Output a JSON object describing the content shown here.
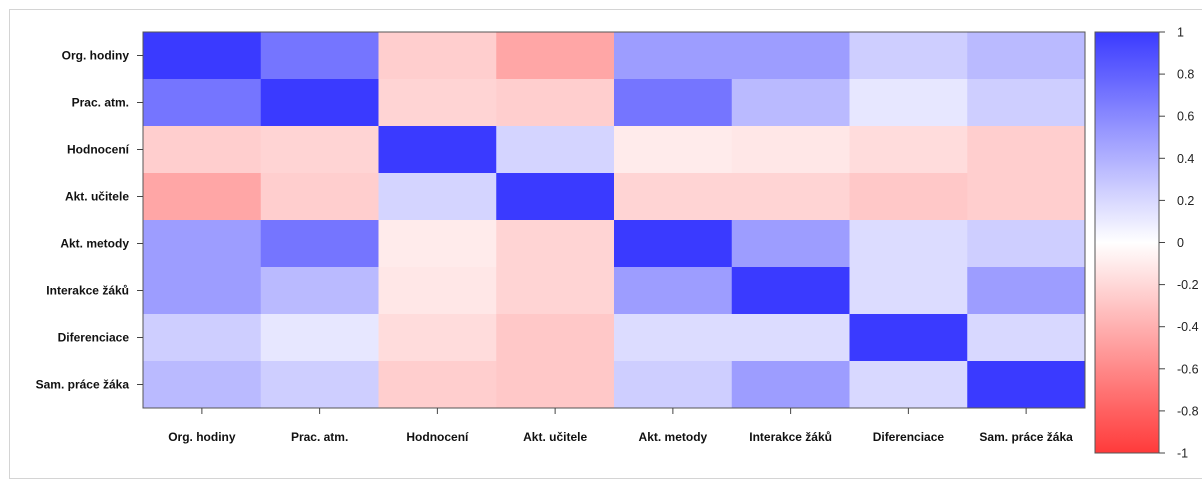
{
  "chart_data": {
    "type": "heatmap",
    "rows": [
      "Org. hodiny",
      "Prac. atm.",
      "Hodnocení",
      "Akt. učitele",
      "Akt. metody",
      "Interakce žáků",
      "Diferenciace",
      "Sam. práce žáka"
    ],
    "columns": [
      "Org. hodiny",
      "Prac. atm.",
      "Hodnocení",
      "Akt. učitele",
      "Akt. metody",
      "Interakce žáků",
      "Diferenciace",
      "Sam. práce žáka"
    ],
    "values": [
      [
        1.0,
        0.7,
        -0.25,
        -0.45,
        0.5,
        0.5,
        0.25,
        0.35
      ],
      [
        0.7,
        1.0,
        -0.22,
        -0.25,
        0.7,
        0.35,
        0.12,
        0.25
      ],
      [
        -0.25,
        -0.22,
        1.0,
        0.22,
        -0.1,
        -0.12,
        -0.18,
        -0.25
      ],
      [
        -0.45,
        -0.25,
        0.22,
        1.0,
        -0.22,
        -0.22,
        -0.28,
        -0.25
      ],
      [
        0.5,
        0.7,
        -0.1,
        -0.22,
        1.0,
        0.5,
        0.18,
        0.25
      ],
      [
        0.5,
        0.35,
        -0.12,
        -0.22,
        0.5,
        1.0,
        0.18,
        0.5
      ],
      [
        0.25,
        0.12,
        -0.18,
        -0.28,
        0.18,
        0.18,
        1.0,
        0.2
      ],
      [
        0.35,
        0.25,
        -0.25,
        -0.28,
        0.25,
        0.5,
        0.2,
        1.0
      ]
    ],
    "colorbar": {
      "min": -1,
      "max": 1,
      "ticks": [
        "1",
        "0.8",
        "0.6",
        "0.4",
        "0.2",
        "0",
        "-0.2",
        "-0.4",
        "-0.6",
        "-0.8",
        "-1"
      ],
      "tick_values": [
        1,
        0.8,
        0.6,
        0.4,
        0.2,
        0,
        -0.2,
        -0.4,
        -0.6,
        -0.8,
        -1
      ],
      "positive_color": "#3a3aff",
      "zero_color": "#ffffff",
      "negative_color": "#ff3a3a"
    }
  }
}
